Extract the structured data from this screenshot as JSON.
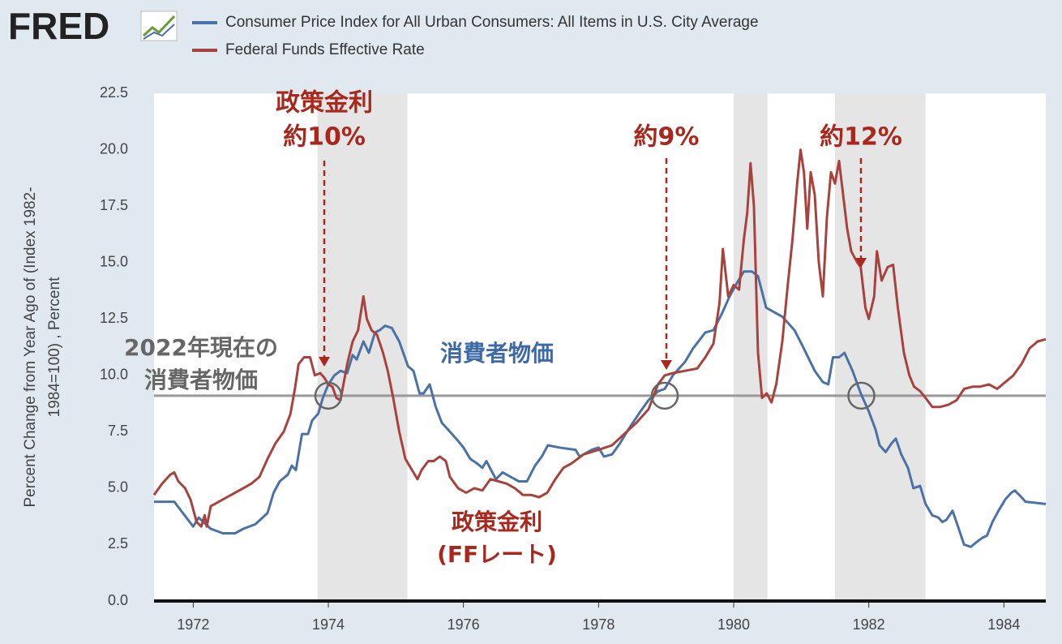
{
  "logo": "FRED",
  "chart_data": {
    "type": "line",
    "y_label": [
      "Percent Change from Year Ago of (Index 1982-",
      "1984=100) , Percent"
    ],
    "xlim": [
      1971.42,
      1984.62
    ],
    "xticks": [
      1972,
      1974,
      1976,
      1978,
      1980,
      1982,
      1984
    ],
    "ylim": [
      0,
      22.5
    ],
    "yticks": [
      {
        "value": 0,
        "label": "0.0"
      },
      2.5,
      {
        "value": 5,
        "label": "5.0"
      },
      7.5,
      {
        "value": 10,
        "label": "10.0"
      },
      12.5,
      {
        "value": 15,
        "label": "15.0"
      },
      17.5,
      {
        "value": 20,
        "label": "20.0"
      },
      22.5
    ],
    "grid": false,
    "recessions": [
      [
        1973.84,
        1975.17
      ],
      [
        1980.0,
        1980.5
      ],
      [
        1981.5,
        1982.84
      ]
    ],
    "shade_color": "#e5e5e5",
    "reference_line": 9.1,
    "highlight_points": [
      1974.0,
      1978.98,
      1981.89
    ],
    "series": [
      {
        "name": "Consumer Price Index for All Urban Consumers: All Items in U.S. City Average",
        "color": "#4a72a8",
        "x": [
          1971.42,
          1971.72,
          1972.0,
          1972.08,
          1972.26,
          1972.44,
          1972.62,
          1972.74,
          1972.92,
          1973.1,
          1973.19,
          1973.28,
          1973.4,
          1973.46,
          1973.52,
          1973.61,
          1973.7,
          1973.76,
          1973.85,
          1973.92,
          1974.0,
          1974.09,
          1974.18,
          1974.28,
          1974.36,
          1974.42,
          1974.52,
          1974.6,
          1974.69,
          1974.76,
          1974.84,
          1974.94,
          1975.05,
          1975.18,
          1975.26,
          1975.35,
          1975.41,
          1975.5,
          1975.59,
          1975.68,
          1975.8,
          1975.92,
          1976.0,
          1976.1,
          1976.2,
          1976.28,
          1976.34,
          1976.48,
          1976.58,
          1976.7,
          1976.82,
          1976.94,
          1977.06,
          1977.16,
          1977.25,
          1977.42,
          1977.66,
          1977.72,
          1977.9,
          1978.0,
          1978.08,
          1978.2,
          1978.32,
          1978.44,
          1978.62,
          1978.74,
          1978.88,
          1978.98,
          1979.1,
          1979.28,
          1979.4,
          1979.58,
          1979.7,
          1979.82,
          1979.94,
          1980.03,
          1980.15,
          1980.27,
          1980.36,
          1980.48,
          1980.6,
          1980.72,
          1980.9,
          1981.02,
          1981.2,
          1981.32,
          1981.4,
          1981.47,
          1981.56,
          1981.64,
          1981.76,
          1981.88,
          1982.0,
          1982.1,
          1982.16,
          1982.25,
          1982.34,
          1982.4,
          1982.48,
          1982.58,
          1982.66,
          1982.76,
          1982.84,
          1982.94,
          1983.03,
          1983.09,
          1983.15,
          1983.24,
          1983.32,
          1983.41,
          1983.51,
          1983.59,
          1983.68,
          1983.75,
          1983.83,
          1983.92,
          1984.02,
          1984.11,
          1984.16,
          1984.26,
          1984.32,
          1984.62
        ],
        "values": [
          4.4,
          4.4,
          3.3,
          3.7,
          3.2,
          3.0,
          3.0,
          3.2,
          3.4,
          3.9,
          4.8,
          5.3,
          5.6,
          6.0,
          5.8,
          7.4,
          7.4,
          8.0,
          8.3,
          9.0,
          9.6,
          10.0,
          10.2,
          10.1,
          10.9,
          10.7,
          11.5,
          11.0,
          11.9,
          12.0,
          12.2,
          12.1,
          11.5,
          10.4,
          10.2,
          9.2,
          9.2,
          9.6,
          8.6,
          7.9,
          7.5,
          7.1,
          6.8,
          6.3,
          6.1,
          5.9,
          6.2,
          5.4,
          5.7,
          5.5,
          5.3,
          5.3,
          6.0,
          6.4,
          6.9,
          6.8,
          6.7,
          6.4,
          6.7,
          6.8,
          6.4,
          6.5,
          7.0,
          7.6,
          8.4,
          8.9,
          9.3,
          9.4,
          10.0,
          10.6,
          11.2,
          11.9,
          12.0,
          12.7,
          13.5,
          14.0,
          14.6,
          14.6,
          14.4,
          13.0,
          12.8,
          12.6,
          12.0,
          11.3,
          10.2,
          9.7,
          9.6,
          10.8,
          10.8,
          11.0,
          10.2,
          9.2,
          8.4,
          7.6,
          6.9,
          6.6,
          7.0,
          7.2,
          6.5,
          5.9,
          5.0,
          5.1,
          4.3,
          3.8,
          3.7,
          3.5,
          3.6,
          4.0,
          3.3,
          2.5,
          2.4,
          2.6,
          2.8,
          2.9,
          3.5,
          4.0,
          4.5,
          4.8,
          4.9,
          4.6,
          4.4,
          4.3
        ]
      },
      {
        "name": "Federal Funds Effective Rate",
        "color": "#a8423d",
        "x": [
          1971.42,
          1971.54,
          1971.66,
          1971.72,
          1971.78,
          1971.88,
          1971.96,
          1972.05,
          1972.12,
          1972.17,
          1972.2,
          1972.26,
          1972.38,
          1972.5,
          1972.62,
          1972.74,
          1972.86,
          1972.98,
          1973.1,
          1973.22,
          1973.34,
          1973.44,
          1973.51,
          1973.56,
          1973.64,
          1973.73,
          1973.8,
          1973.88,
          1973.94,
          1974.0,
          1974.06,
          1974.12,
          1974.18,
          1974.28,
          1974.36,
          1974.44,
          1974.52,
          1974.57,
          1974.64,
          1974.72,
          1974.81,
          1974.88,
          1974.96,
          1975.05,
          1975.14,
          1975.24,
          1975.32,
          1975.38,
          1975.48,
          1975.56,
          1975.65,
          1975.74,
          1975.8,
          1975.92,
          1976.04,
          1976.16,
          1976.28,
          1976.4,
          1976.52,
          1976.64,
          1976.76,
          1976.88,
          1977.0,
          1977.12,
          1977.24,
          1977.36,
          1977.48,
          1977.6,
          1977.78,
          1978.0,
          1978.2,
          1978.38,
          1978.56,
          1978.74,
          1978.88,
          1978.98,
          1979.1,
          1979.28,
          1979.46,
          1979.58,
          1979.7,
          1979.79,
          1979.84,
          1979.92,
          1980.0,
          1980.08,
          1980.15,
          1980.2,
          1980.25,
          1980.3,
          1980.36,
          1980.42,
          1980.49,
          1980.56,
          1980.63,
          1980.72,
          1980.8,
          1980.87,
          1980.94,
          1980.99,
          1981.04,
          1981.09,
          1981.14,
          1981.2,
          1981.26,
          1981.32,
          1981.38,
          1981.44,
          1981.5,
          1981.56,
          1981.62,
          1981.68,
          1981.74,
          1981.83,
          1981.88,
          1981.95,
          1982.0,
          1982.08,
          1982.12,
          1982.19,
          1982.28,
          1982.36,
          1982.43,
          1982.52,
          1982.6,
          1982.67,
          1982.76,
          1982.84,
          1982.94,
          1983.06,
          1983.18,
          1983.3,
          1983.41,
          1983.54,
          1983.65,
          1983.78,
          1983.9,
          1984.02,
          1984.14,
          1984.26,
          1984.38,
          1984.5,
          1984.62
        ],
        "values": [
          4.7,
          5.2,
          5.6,
          5.7,
          5.3,
          5.0,
          4.5,
          3.5,
          3.3,
          3.8,
          3.3,
          4.2,
          4.4,
          4.6,
          4.8,
          5.0,
          5.2,
          5.5,
          6.3,
          7.0,
          7.5,
          8.3,
          9.5,
          10.5,
          10.8,
          10.8,
          10.0,
          10.1,
          9.9,
          9.6,
          9.5,
          9.0,
          8.9,
          10.5,
          11.5,
          12.0,
          13.5,
          12.5,
          12.0,
          11.8,
          11.0,
          10.2,
          9.0,
          7.5,
          6.3,
          5.8,
          5.4,
          5.8,
          6.2,
          6.2,
          6.4,
          6.2,
          5.5,
          5.0,
          4.8,
          5.0,
          4.9,
          5.4,
          5.3,
          5.2,
          5.0,
          4.7,
          4.7,
          4.6,
          4.8,
          5.4,
          5.9,
          6.1,
          6.5,
          6.7,
          6.9,
          7.4,
          7.9,
          8.5,
          9.6,
          10.0,
          10.1,
          10.2,
          10.3,
          10.8,
          11.4,
          13.2,
          15.6,
          13.5,
          14.0,
          13.8,
          16.0,
          17.2,
          19.4,
          17.5,
          11.0,
          9.0,
          9.2,
          8.8,
          9.6,
          11.5,
          14.0,
          16.0,
          18.5,
          20.0,
          19.0,
          16.5,
          19.0,
          18.0,
          15.0,
          13.5,
          17.0,
          19.0,
          18.5,
          19.5,
          18.0,
          16.5,
          15.5,
          15.0,
          14.8,
          13.0,
          12.5,
          13.5,
          15.5,
          14.2,
          14.8,
          14.9,
          13.0,
          11.0,
          10.0,
          9.5,
          9.3,
          9.0,
          8.6,
          8.6,
          8.7,
          8.9,
          9.4,
          9.5,
          9.5,
          9.6,
          9.4,
          9.7,
          10.0,
          10.5,
          11.2,
          11.5,
          11.6
        ]
      }
    ],
    "annotations": [
      {
        "lines": [
          "政策金利",
          "約10%"
        ],
        "color": "#a8281e"
      },
      {
        "lines": [
          "約9%"
        ],
        "color": "#a8281e"
      },
      {
        "lines": [
          "約12%"
        ],
        "color": "#a8281e"
      },
      {
        "lines": [
          "2022年現在の",
          "消費者物価"
        ],
        "color": "#666666"
      },
      {
        "lines": [
          "消費者物価"
        ],
        "color": "#3d6aa6"
      },
      {
        "lines": [
          "政策金利",
          "(FFレート)"
        ],
        "color": "#a8281e"
      }
    ]
  }
}
